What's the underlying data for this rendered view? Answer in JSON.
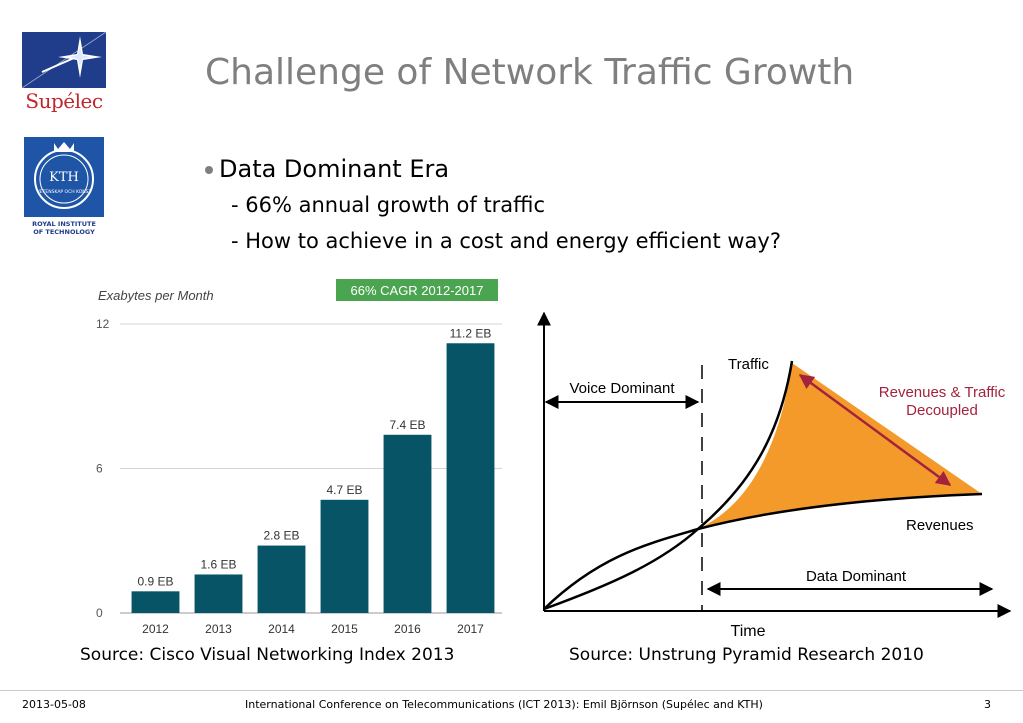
{
  "slide": {
    "title": "Challenge of Network Traffic Growth",
    "bullet": "Data Dominant Era",
    "subbullets": [
      "- 66% annual growth of traffic",
      "- How to achieve in a cost and energy efficient way?"
    ]
  },
  "logos": {
    "supelec_text": "Supélec",
    "kth_text": "KTH",
    "kth_seal_text": "VETENSKAP OCH KONST",
    "kth_caption_1": "ROYAL INSTITUTE",
    "kth_caption_2": "OF TECHNOLOGY"
  },
  "colors": {
    "bar": "#075466",
    "badge": "#4ba44f",
    "fill": "#f39a2b",
    "arrow": "#a3233d",
    "title": "#7f7f7f",
    "supelec_blue": "#1f3d8a",
    "kth_blue": "#1f55a6"
  },
  "chart_data": [
    {
      "type": "bar",
      "ylabel": "Exabytes per Month",
      "badge": "66% CAGR 2012-2017",
      "categories": [
        "2012",
        "2013",
        "2014",
        "2015",
        "2016",
        "2017"
      ],
      "values": [
        0.9,
        1.6,
        2.8,
        4.7,
        7.4,
        11.2
      ],
      "data_labels": [
        "0.9 EB",
        "1.6 EB",
        "2.8 EB",
        "4.7 EB",
        "7.4 EB",
        "11.2 EB"
      ],
      "yticks": [
        "0",
        "6",
        "12"
      ],
      "ylim": [
        0,
        12
      ],
      "grid": true
    },
    {
      "type": "line",
      "xlabel": "Time",
      "series": [
        {
          "name": "Traffic"
        },
        {
          "name": "Revenues"
        }
      ],
      "annotations": {
        "voice": "Voice Dominant",
        "data": "Data Dominant",
        "decoupled_1": "Revenues & Traffic",
        "decoupled_2": "Decoupled"
      }
    }
  ],
  "footer": {
    "date": "2013-05-08",
    "center": "International Conference on Telecommunications (ICT 2013): Emil Björnson (Supélec and KTH)",
    "page": "3"
  },
  "sources": {
    "left": "Source: Cisco Visual Networking Index 2013",
    "right": "Source: Unstrung Pyramid Research 2010"
  }
}
